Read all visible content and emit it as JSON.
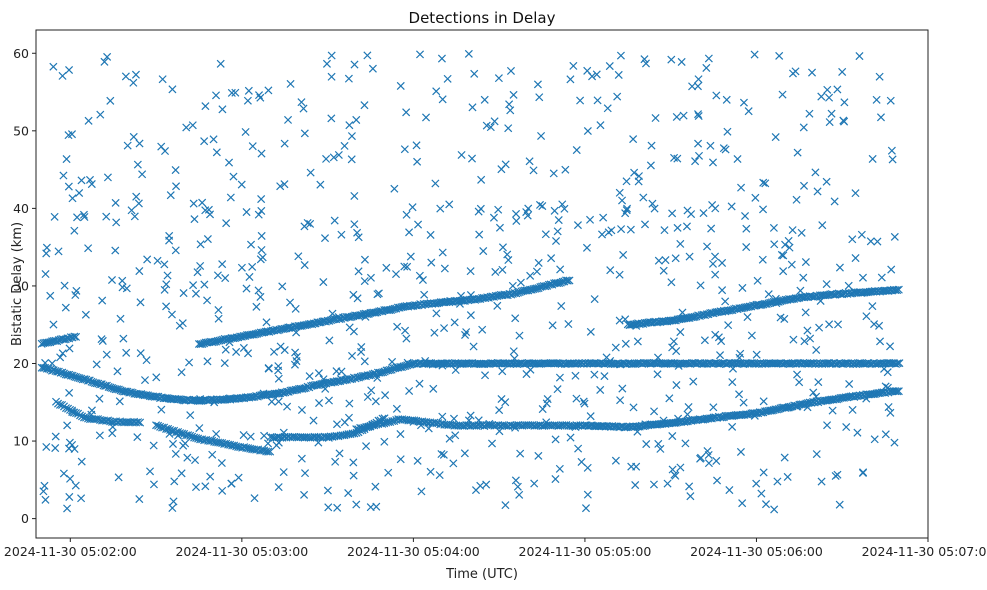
{
  "chart_data": {
    "type": "scatter",
    "title": "Detections in Delay",
    "xlabel": "Time (UTC)",
    "ylabel": "Bistatic Delay (km)",
    "marker": "x",
    "color": "#1f77b4",
    "x_unit": "seconds since 2024-11-30 05:02:00",
    "xlim": [
      -12,
      300
    ],
    "ylim": [
      -2.5,
      63
    ],
    "xticks": [
      {
        "value": 0,
        "label": "2024-11-30 05:02:00"
      },
      {
        "value": 60,
        "label": "2024-11-30 05:03:00"
      },
      {
        "value": 120,
        "label": "2024-11-30 05:04:00"
      },
      {
        "value": 180,
        "label": "2024-11-30 05:05:00"
      },
      {
        "value": 240,
        "label": "2024-11-30 05:06:00"
      },
      {
        "value": 300,
        "label": "2024-11-30 05:07:00"
      }
    ],
    "yticks": [
      {
        "value": 0,
        "label": "0"
      },
      {
        "value": 10,
        "label": "10"
      },
      {
        "value": 20,
        "label": "20"
      },
      {
        "value": 30,
        "label": "30"
      },
      {
        "value": 40,
        "label": "40"
      },
      {
        "value": 50,
        "label": "50"
      },
      {
        "value": 60,
        "label": "60"
      }
    ],
    "tracks": [
      {
        "name": "track-a",
        "x_start": -10,
        "x_end": 2,
        "step": 0.6,
        "points": [
          [
            -10,
            22.5
          ],
          [
            2,
            23.5
          ]
        ]
      },
      {
        "name": "track-b",
        "x_start": -10,
        "x_end": 290,
        "step": 0.6,
        "points": [
          [
            -10,
            19.5
          ],
          [
            0,
            18.5
          ],
          [
            20,
            16.3
          ],
          [
            35,
            15.4
          ],
          [
            45,
            15.2
          ],
          [
            60,
            15.5
          ],
          [
            75,
            16.3
          ],
          [
            90,
            17.5
          ],
          [
            105,
            18.5
          ],
          [
            120,
            20
          ]
        ]
      },
      {
        "name": "track-c",
        "x_start": 45,
        "x_end": 120,
        "step": 0.6,
        "points": [
          [
            45,
            22.5
          ],
          [
            60,
            23.5
          ],
          [
            75,
            24.5
          ],
          [
            90,
            25.5
          ],
          [
            105,
            26.5
          ],
          [
            120,
            27.5
          ]
        ]
      },
      {
        "name": "track-d",
        "x_start": 120,
        "x_end": 175,
        "step": 0.6,
        "points": [
          [
            120,
            27.5
          ],
          [
            140,
            28.2
          ],
          [
            155,
            29
          ],
          [
            175,
            30.8
          ]
        ]
      },
      {
        "name": "track-e",
        "x_start": 195,
        "x_end": 240,
        "step": 0.6,
        "points": [
          [
            195,
            25
          ],
          [
            210,
            25.5
          ],
          [
            225,
            26.5
          ],
          [
            240,
            27.5
          ]
        ]
      },
      {
        "name": "track-f",
        "x_start": 240,
        "x_end": 290,
        "step": 0.6,
        "points": [
          [
            240,
            27.5
          ],
          [
            255,
            28.5
          ],
          [
            270,
            29
          ],
          [
            290,
            29.5
          ]
        ]
      },
      {
        "name": "track-g",
        "x_start": -5,
        "x_end": 25,
        "step": 0.7,
        "points": [
          [
            -5,
            15
          ],
          [
            5,
            13
          ],
          [
            15,
            12.5
          ],
          [
            25,
            12.4
          ]
        ]
      },
      {
        "name": "track-h",
        "x_start": 30,
        "x_end": 70,
        "step": 0.7,
        "points": [
          [
            30,
            12
          ],
          [
            45,
            10.3
          ],
          [
            60,
            9.2
          ],
          [
            70,
            8.6
          ]
        ]
      },
      {
        "name": "track-i",
        "x_start": 100,
        "x_end": 180,
        "step": 0.7,
        "points": [
          [
            100,
            11.5
          ],
          [
            115,
            12.8
          ],
          [
            135,
            12
          ],
          [
            160,
            12
          ],
          [
            180,
            12
          ]
        ]
      },
      {
        "name": "track-j",
        "x_start": 180,
        "x_end": 290,
        "step": 0.6,
        "points": [
          [
            180,
            12
          ],
          [
            195,
            11.8
          ],
          [
            210,
            12.3
          ],
          [
            225,
            13
          ],
          [
            240,
            13.6
          ],
          [
            260,
            15
          ],
          [
            275,
            15.8
          ],
          [
            290,
            16.5
          ]
        ]
      },
      {
        "name": "track-k",
        "x_start": 70,
        "x_end": 110,
        "step": 0.7,
        "points": [
          [
            70,
            10.5
          ],
          [
            90,
            10.5
          ],
          [
            100,
            11
          ],
          [
            110,
            13
          ]
        ]
      }
    ],
    "scatter": {
      "count": 620,
      "x_range": [
        -10,
        290
      ],
      "y_range": [
        1,
        60
      ],
      "dense_band": {
        "count": 240,
        "y_range": [
          3,
          42
        ]
      },
      "seed": 20241130
    }
  }
}
